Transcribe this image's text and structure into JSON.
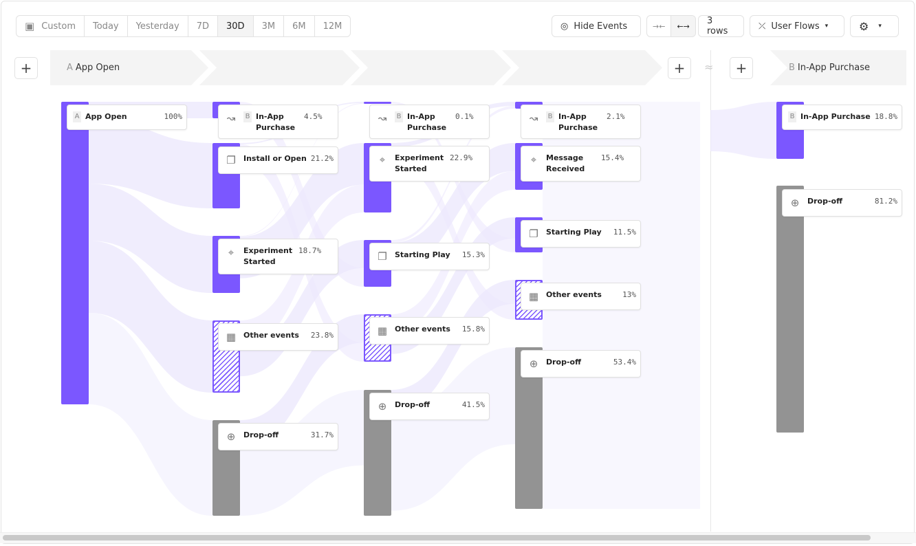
{
  "toolbar": {
    "date_ranges": [
      {
        "label": "Custom"
      },
      {
        "label": "Today"
      },
      {
        "label": "Yesterday"
      },
      {
        "label": "7D"
      },
      {
        "label": "30D",
        "selected": true
      },
      {
        "label": "3M"
      },
      {
        "label": "6M"
      },
      {
        "label": "12M"
      }
    ],
    "hide_events": "Hide Events",
    "rows": "3 rows",
    "view": "User Flows"
  },
  "header": {
    "a_letter": "A",
    "a_label": "App Open",
    "b_letter": "B",
    "b_label": "In-App Purchase"
  },
  "colors": {
    "accent": "#7b57ff",
    "dropoff": "#939393",
    "flow": "#ece8fd"
  },
  "columns": [
    [
      {
        "name": "App Open",
        "pct": "100%",
        "icon": "step-a",
        "badge": "A",
        "kind": "purple"
      }
    ],
    [
      {
        "name": "In-App Purchase",
        "pct": "4.5%",
        "icon": "goal-b",
        "badge": "B",
        "kind": "purple"
      },
      {
        "name": "Install or Open",
        "pct": "21.2%",
        "icon": "copy",
        "kind": "purple"
      },
      {
        "name": "Experiment Started",
        "pct": "18.7%",
        "icon": "cursor",
        "kind": "purple"
      },
      {
        "name": "Other events",
        "pct": "23.8%",
        "icon": "grid",
        "kind": "hatch"
      },
      {
        "name": "Drop-off",
        "pct": "31.7%",
        "icon": "arrow-down-circle",
        "kind": "gray"
      }
    ],
    [
      {
        "name": "In-App Purchase",
        "pct": "0.1%",
        "icon": "goal-b",
        "badge": "B",
        "kind": "purple"
      },
      {
        "name": "Experiment Started",
        "pct": "22.9%",
        "icon": "cursor",
        "kind": "purple"
      },
      {
        "name": "Starting Play",
        "pct": "15.3%",
        "icon": "copy",
        "kind": "purple"
      },
      {
        "name": "Other events",
        "pct": "15.8%",
        "icon": "grid",
        "kind": "hatch"
      },
      {
        "name": "Drop-off",
        "pct": "41.5%",
        "icon": "arrow-down-circle",
        "kind": "gray"
      }
    ],
    [
      {
        "name": "In-App Purchase",
        "pct": "2.1%",
        "icon": "goal-b",
        "badge": "B",
        "kind": "purple"
      },
      {
        "name": "Message Received",
        "pct": "15.4%",
        "icon": "cursor",
        "kind": "purple"
      },
      {
        "name": "Starting Play",
        "pct": "11.5%",
        "icon": "copy",
        "kind": "purple"
      },
      {
        "name": "Other events",
        "pct": "13%",
        "icon": "grid",
        "kind": "hatch"
      },
      {
        "name": "Drop-off",
        "pct": "53.4%",
        "icon": "arrow-down-circle",
        "kind": "gray"
      }
    ],
    [
      {
        "name": "In-App Purchase",
        "pct": "18.8%",
        "icon": "step-b",
        "badge": "B",
        "kind": "purple"
      },
      {
        "name": "Drop-off",
        "pct": "81.2%",
        "icon": "arrow-down-circle",
        "kind": "gray"
      }
    ]
  ]
}
